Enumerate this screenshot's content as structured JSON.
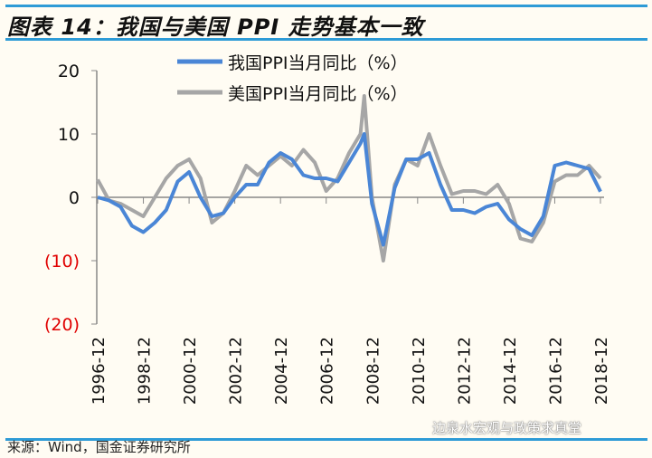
{
  "title": "图表 14：我国与美国 PPI 走势基本一致",
  "source": "来源：Wind，国金证券研究所",
  "watermark": "边泉水宏观与政策求真堂",
  "colors": {
    "china": "#4a86d6",
    "us": "#a6a6a6",
    "negative_label": "#e00000",
    "rule": "#2e9bd6"
  },
  "chart_data": {
    "type": "line",
    "title": "图表 14：我国与美国 PPI 走势基本一致",
    "xlabel": "",
    "ylabel": "",
    "ylim": [
      -20,
      20
    ],
    "yticks": [
      20,
      10,
      0,
      -10,
      -20
    ],
    "ytick_labels": [
      "20",
      "10",
      "0",
      "(10)",
      "(20)"
    ],
    "xtick_labels": [
      "1996-12",
      "1998-12",
      "2000-12",
      "2002-12",
      "2004-12",
      "2006-12",
      "2008-12",
      "2010-12",
      "2012-12",
      "2014-12",
      "2016-12",
      "2018-12"
    ],
    "grid": false,
    "legend": "top-center",
    "x": [
      "1996-12",
      "1997-06",
      "1997-12",
      "1998-06",
      "1998-12",
      "1999-06",
      "1999-12",
      "2000-06",
      "2000-12",
      "2001-06",
      "2001-12",
      "2002-06",
      "2002-12",
      "2003-06",
      "2003-12",
      "2004-06",
      "2004-12",
      "2005-06",
      "2005-12",
      "2006-06",
      "2006-12",
      "2007-06",
      "2007-12",
      "2008-06",
      "2008-08",
      "2008-12",
      "2009-06",
      "2009-12",
      "2010-06",
      "2010-12",
      "2011-06",
      "2011-12",
      "2012-06",
      "2012-12",
      "2013-06",
      "2013-12",
      "2014-06",
      "2014-12",
      "2015-06",
      "2015-12",
      "2016-06",
      "2016-12",
      "2017-06",
      "2017-12",
      "2018-06",
      "2018-12"
    ],
    "series": [
      {
        "name": "我国PPI当月同比（%）",
        "values": [
          0,
          -0.5,
          -1.5,
          -4.5,
          -5.5,
          -4,
          -2,
          2.5,
          4,
          0,
          -3,
          -2.5,
          0,
          2,
          2,
          5.5,
          7,
          6,
          3.5,
          3,
          3,
          2.5,
          5.5,
          8.5,
          10,
          -1,
          -7.5,
          1.5,
          6,
          6,
          7,
          2,
          -2,
          -2,
          -2.5,
          -1.5,
          -1,
          -3.5,
          -5,
          -6,
          -3,
          5,
          5.5,
          5,
          4.5,
          0.9
        ]
      },
      {
        "name": "美国PPI当月同比（%）",
        "values": [
          2.8,
          -0.5,
          -1,
          -2,
          -3,
          0,
          3,
          5,
          6,
          3,
          -4,
          -2.5,
          1,
          5,
          3.5,
          5,
          6.5,
          5,
          7.5,
          5.5,
          1,
          3,
          7,
          10,
          16,
          0,
          -10,
          2,
          6,
          5,
          10,
          5,
          0.5,
          1,
          1,
          0.5,
          2,
          -1,
          -6.5,
          -7,
          -4,
          2.5,
          3.5,
          3.5,
          5,
          3
        ]
      }
    ]
  }
}
